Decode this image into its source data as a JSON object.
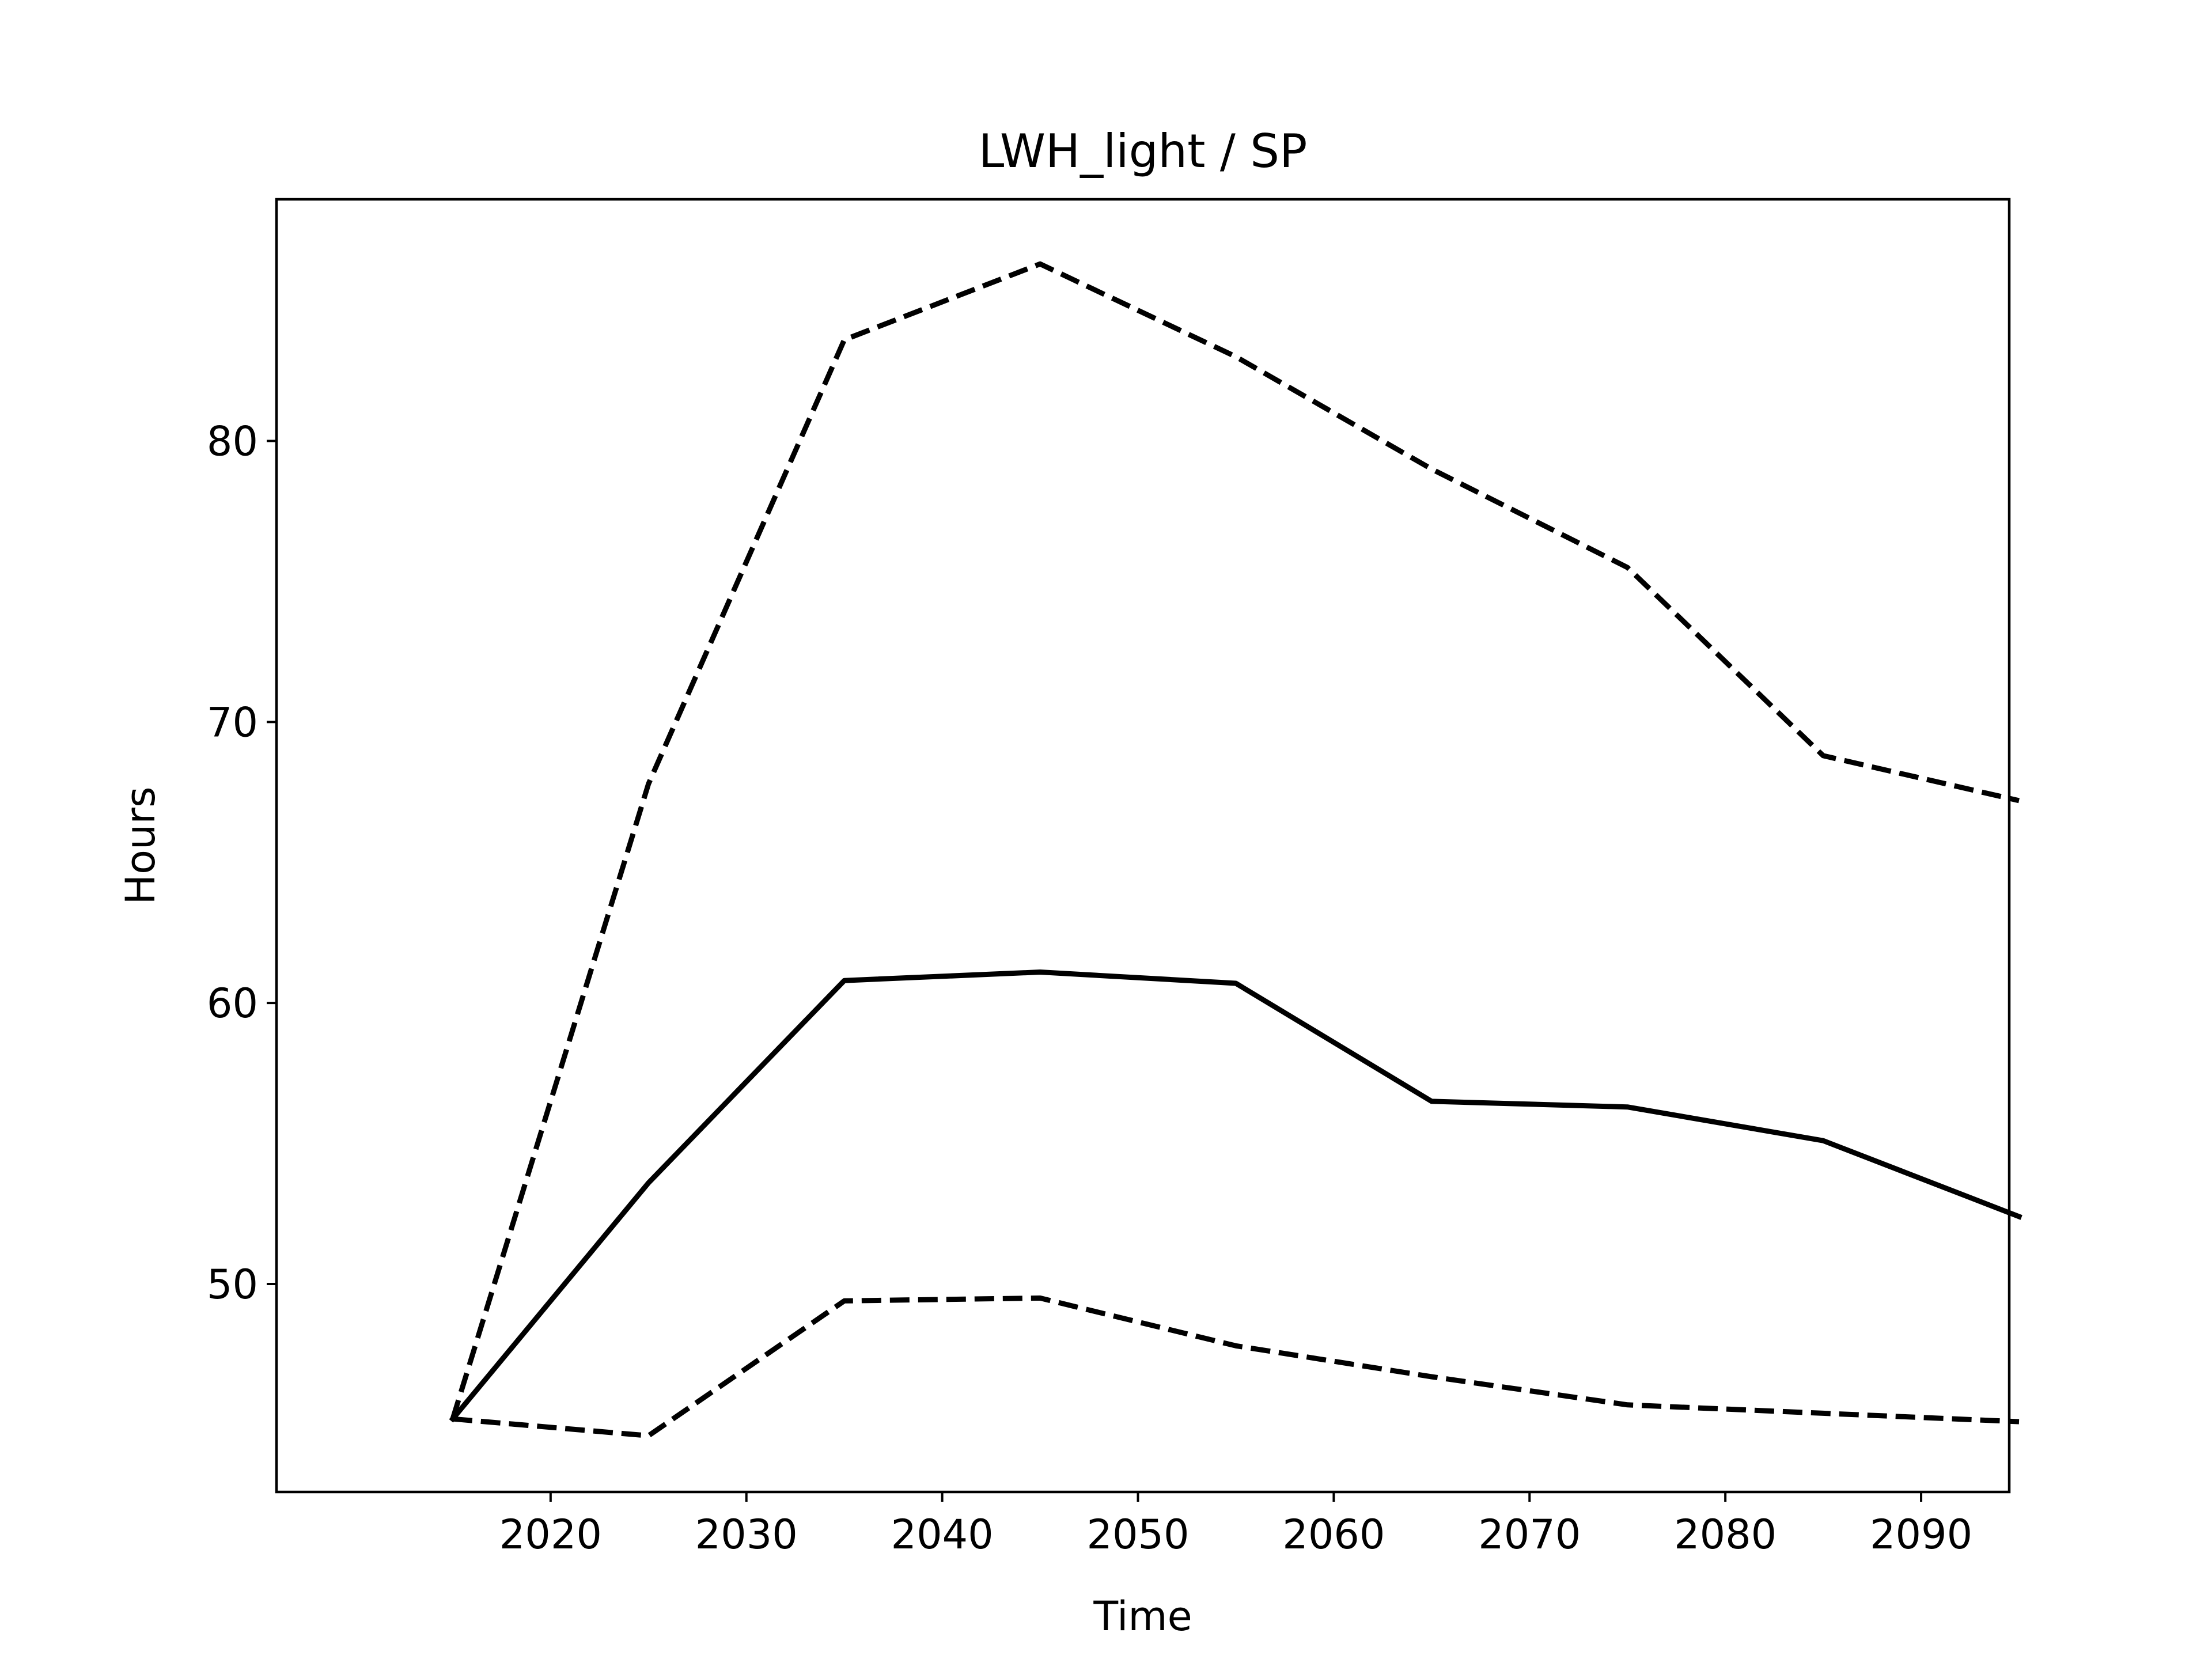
{
  "chart_data": {
    "type": "line",
    "title": "LWH_light / SP",
    "xlabel": "Time",
    "ylabel": "Hours",
    "x": [
      2015,
      2025,
      2035,
      2045,
      2055,
      2065,
      2075,
      2085,
      2095
    ],
    "xlim": [
      2006,
      2094.5
    ],
    "ylim": [
      42.6,
      88.6
    ],
    "xticks": [
      2020,
      2030,
      2040,
      2050,
      2060,
      2070,
      2080,
      2090
    ],
    "yticks": [
      50,
      60,
      70,
      80
    ],
    "grid": false,
    "legend": "none",
    "series": [
      {
        "style": "solid",
        "color": "#000000",
        "values": [
          45.2,
          53.6,
          60.8,
          61.1,
          60.7,
          56.5,
          56.3,
          55.1,
          52.4
        ]
      },
      {
        "style": "dashed",
        "color": "#000000",
        "values": [
          45.2,
          67.8,
          83.6,
          86.3,
          83.0,
          79.0,
          75.5,
          68.8,
          67.2
        ]
      },
      {
        "style": "dashed",
        "color": "#000000",
        "values": [
          45.2,
          44.6,
          49.4,
          49.5,
          47.8,
          46.7,
          45.7,
          45.4,
          45.1
        ]
      }
    ]
  }
}
